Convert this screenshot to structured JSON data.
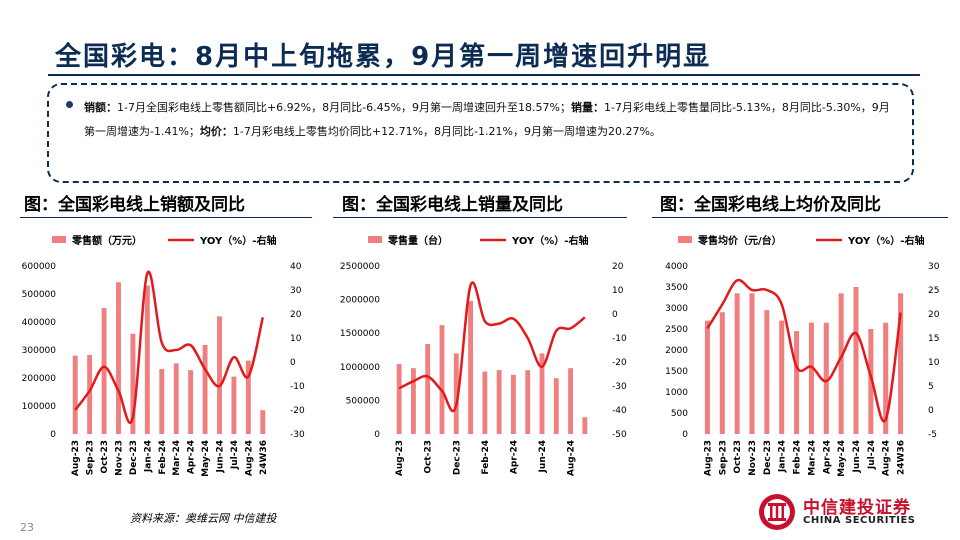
{
  "title": "全国彩电：8月中上旬拖累，9月第一周增速回升明显",
  "summary": {
    "sales_label": "销额：",
    "sales_text": "1-7月全国彩电线上零售额同比+6.92%，8月同比-6.45%，9月第一周增速回升至18.57%；",
    "volume_label": "销量：",
    "volume_text": "1-7月彩电线上零售量同比-5.13%，8月同比-5.30%，9月第一周增速为-1.41%；",
    "price_label": "均价：",
    "price_text": "1-7月彩电线上零售均价同比+12.71%，8月同比-1.21%，9月第一周增速为20.27%。"
  },
  "footer": {
    "source": "资料来源：奥维云网  中信建投",
    "page": "23",
    "logo_cn": "中信建投证券",
    "logo_en": "CHINA SECURITIES"
  },
  "colors": {
    "bar": "#f08080",
    "line": "#e31a1c",
    "title": "#0c2c54"
  },
  "chart_data": [
    {
      "type": "bar+line",
      "title": "图：全国彩电线上销额及同比",
      "legend": [
        "零售额（万元）",
        "YOY（%）-右轴"
      ],
      "categories": [
        "Aug-23",
        "Sep-23",
        "Oct-23",
        "Nov-23",
        "Dec-23",
        "Jan-24",
        "Feb-24",
        "Mar-24",
        "Apr-24",
        "May-24",
        "Jun-24",
        "Jul-24",
        "Aug-24",
        "24W36"
      ],
      "x_tick_labels": [
        "Aug-23",
        "Sep-23",
        "Oct-23",
        "Nov-23",
        "Dec-23",
        "Jan-24",
        "Feb-24",
        "Mar-24",
        "Apr-24",
        "May-24",
        "Jun-24",
        "Jul-24",
        "Aug-24",
        "24W36"
      ],
      "bars": [
        280000,
        282000,
        450000,
        542000,
        358000,
        530000,
        232000,
        252000,
        228000,
        318000,
        420000,
        205000,
        262000,
        85000
      ],
      "line": [
        -20,
        -12,
        -2,
        -12,
        -23,
        37,
        8,
        5,
        7,
        -3,
        -10,
        2,
        -6,
        18.6
      ],
      "ylim_left": [
        0,
        600000
      ],
      "yticks_left": [
        0,
        100000,
        200000,
        300000,
        400000,
        500000,
        600000
      ],
      "ylim_right": [
        -30,
        40
      ],
      "yticks_right": [
        -30,
        -20,
        -10,
        0,
        10,
        20,
        30,
        40
      ]
    },
    {
      "type": "bar+line",
      "title": "图：全国彩电线上销量及同比",
      "legend": [
        "零售量（台）",
        "YOY（%）-右轴"
      ],
      "categories": [
        "Aug-23",
        "Sep-23",
        "Oct-23",
        "Nov-23",
        "Dec-23",
        "Jan-24",
        "Feb-24",
        "Mar-24",
        "Apr-24",
        "May-24",
        "Jun-24",
        "Jul-24",
        "Aug-24",
        "24W36"
      ],
      "x_tick_labels": [
        "Aug-23",
        "",
        "Oct-23",
        "",
        "Dec-23",
        "",
        "Feb-24",
        "",
        "Apr-24",
        "",
        "Jun-24",
        "",
        "Aug-24",
        ""
      ],
      "bars": [
        1040000,
        980000,
        1340000,
        1620000,
        1200000,
        1980000,
        930000,
        950000,
        880000,
        950000,
        1200000,
        830000,
        980000,
        250000
      ],
      "line": [
        -31,
        -28,
        -26,
        -32,
        -38,
        12,
        -3,
        -4,
        -2,
        -10,
        -22,
        -7,
        -6,
        -1.4
      ],
      "ylim_left": [
        0,
        2500000
      ],
      "yticks_left": [
        0,
        500000,
        1000000,
        1500000,
        2000000,
        2500000
      ],
      "ylim_right": [
        -50,
        20
      ],
      "yticks_right": [
        -50,
        -40,
        -30,
        -20,
        -10,
        0,
        10,
        20
      ]
    },
    {
      "type": "bar+line",
      "title": "图：全国彩电线上均价及同比",
      "legend": [
        "零售均价（元/台）",
        "YOY（%）-右轴"
      ],
      "categories": [
        "Aug-23",
        "Sep-23",
        "Oct-23",
        "Nov-23",
        "Dec-23",
        "Jan-24",
        "Feb-24",
        "Mar-24",
        "Apr-24",
        "May-24",
        "Jun-24",
        "Jul-24",
        "Aug-24",
        "24W36"
      ],
      "x_tick_labels": [
        "Aug-23",
        "Sep-23",
        "Oct-23",
        "Nov-23",
        "Dec-23",
        "Jan-24",
        "Feb-24",
        "Mar-24",
        "Apr-24",
        "May-24",
        "Jun-24",
        "Jul-24",
        "Aug-24",
        "24W36"
      ],
      "bars": [
        2700,
        2900,
        3350,
        3350,
        2950,
        2700,
        2450,
        2650,
        2650,
        3350,
        3500,
        2500,
        2650,
        3350
      ],
      "line": [
        17,
        22,
        27,
        25,
        25,
        22,
        9,
        9,
        6,
        11,
        16,
        7,
        -2,
        20.3
      ],
      "ylim_left": [
        0,
        4000
      ],
      "yticks_left": [
        0,
        500,
        1000,
        1500,
        2000,
        2500,
        3000,
        3500,
        4000
      ],
      "ylim_right": [
        -5,
        30
      ],
      "yticks_right": [
        -5,
        0,
        5,
        10,
        15,
        20,
        25,
        30
      ]
    }
  ]
}
